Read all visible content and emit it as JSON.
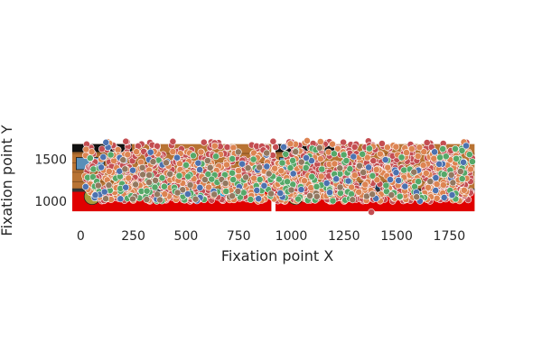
{
  "chart_data": {
    "type": "scatter",
    "title": "",
    "xlabel": "Fixation point X",
    "ylabel": "Fixation point Y",
    "xlim": [
      -40,
      1890
    ],
    "ylim": [
      870,
      1730
    ],
    "x_ticks": [
      {
        "value": 0,
        "label": "0"
      },
      {
        "value": 250,
        "label": "250"
      },
      {
        "value": 500,
        "label": "500"
      },
      {
        "value": 750,
        "label": "750"
      },
      {
        "value": 1000,
        "label": "1000"
      },
      {
        "value": 1250,
        "label": "1250"
      },
      {
        "value": 1500,
        "label": "1500"
      },
      {
        "value": 1750,
        "label": "1750"
      }
    ],
    "y_ticks": [
      {
        "value": 1000,
        "label": "1000"
      },
      {
        "value": 1500,
        "label": "1500"
      }
    ],
    "grid": false,
    "legend": "none",
    "background_images": [
      {
        "name": "left-screen",
        "x_range": [
          -40,
          905
        ],
        "y_range": [
          880,
          1680
        ]
      },
      {
        "name": "right-screen",
        "x_range": [
          925,
          1870
        ],
        "y_range": [
          880,
          1680
        ]
      }
    ],
    "series": [
      {
        "color": "#c44e52",
        "count": 900,
        "x_range": [
          20,
          1860
        ],
        "y_range": [
          1000,
          1720
        ]
      },
      {
        "color": "#dd8452",
        "count": 420,
        "x_range": [
          20,
          1860
        ],
        "y_range": [
          1000,
          1720
        ]
      },
      {
        "color": "#55a868",
        "count": 170,
        "x_range": [
          20,
          1860
        ],
        "y_range": [
          1000,
          1640
        ]
      },
      {
        "color": "#4c72b0",
        "count": 70,
        "x_range": [
          20,
          1860
        ],
        "y_range": [
          1000,
          1680
        ]
      },
      {
        "color": "#937860",
        "count": 60,
        "x_range": [
          20,
          1860
        ],
        "y_range": [
          1000,
          1650
        ]
      }
    ],
    "highlight_points": [
      {
        "x": 1075,
        "y": 1720,
        "color": "#dd8452"
      },
      {
        "x": 1380,
        "y": 870,
        "color": "#c44e52"
      },
      {
        "x": 120,
        "y": 1700,
        "color": "#4c72b0"
      },
      {
        "x": 1830,
        "y": 1660,
        "color": "#4c72b0"
      }
    ]
  }
}
